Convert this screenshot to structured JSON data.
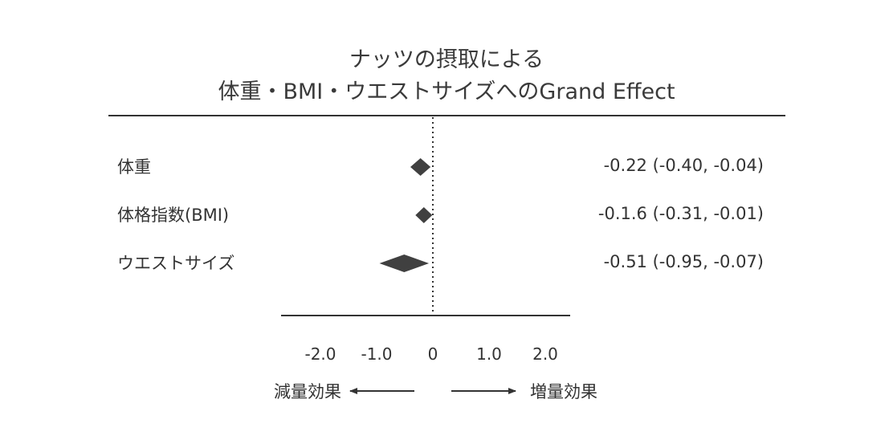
{
  "chart_data": {
    "type": "forest",
    "title_lines": [
      "ナッツの摂取による",
      "体重・BMI・ウエストサイズへのGrand Effect"
    ],
    "rows": [
      {
        "label": "体重",
        "estimate": -0.22,
        "ci": [
          -0.4,
          -0.04
        ],
        "ci_text": "-0.22 (-0.40, -0.04)"
      },
      {
        "label": "体格指数(BMI)",
        "estimate": -0.16,
        "ci": [
          -0.31,
          -0.01
        ],
        "ci_text": "-0.1.6 (-0.31, -0.01)"
      },
      {
        "label": "ウエストサイズ",
        "estimate": -0.51,
        "ci": [
          -0.95,
          -0.07
        ],
        "ci_text": "-0.51 (-0.95, -0.07)"
      }
    ],
    "x_ticks": [
      {
        "value": -2.0,
        "label": "-2.0"
      },
      {
        "value": -1.0,
        "label": "-1.0"
      },
      {
        "value": 0,
        "label": "0"
      },
      {
        "value": 1.0,
        "label": "1.0"
      },
      {
        "value": 2.0,
        "label": "2.0"
      }
    ],
    "reference_line": 0,
    "direction_labels": {
      "left": "減量効果",
      "right": "増量効果"
    },
    "marker_color": "#404040"
  }
}
